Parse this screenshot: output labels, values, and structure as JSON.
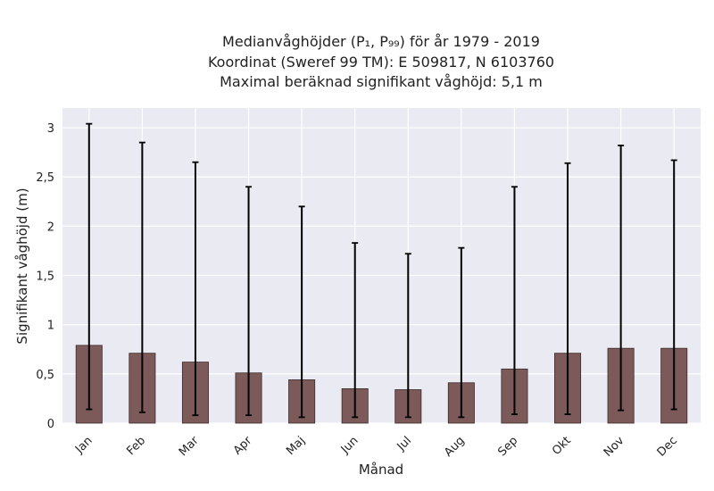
{
  "chart_data": {
    "type": "bar",
    "title_lines": [
      "Medianvåghöjder (P₁, P₉₉) för år 1979 - 2019",
      "Koordinat (Sweref 99 TM): E 509817, N 6103760",
      "Maximal beräknad signifikant våghöjd: 5,1 m"
    ],
    "xlabel": "Månad",
    "ylabel": "Signifikant våghöjd (m)",
    "categories": [
      "Jan",
      "Feb",
      "Mar",
      "Apr",
      "Maj",
      "Jun",
      "Jul",
      "Aug",
      "Sep",
      "Okt",
      "Nov",
      "Dec"
    ],
    "values": [
      0.79,
      0.71,
      0.62,
      0.51,
      0.44,
      0.35,
      0.34,
      0.41,
      0.55,
      0.71,
      0.76,
      0.76
    ],
    "p1": [
      0.14,
      0.11,
      0.08,
      0.08,
      0.06,
      0.06,
      0.06,
      0.06,
      0.09,
      0.09,
      0.13,
      0.14
    ],
    "p99": [
      3.04,
      2.85,
      2.65,
      2.4,
      2.2,
      1.83,
      1.72,
      1.78,
      2.4,
      2.64,
      2.82,
      2.67
    ],
    "ylim": [
      0,
      3.2
    ],
    "yticks": [
      0,
      0.5,
      1,
      1.5,
      2,
      2.5,
      3
    ],
    "ytick_labels": [
      "0",
      "0,5",
      "1",
      "1,5",
      "2",
      "2,5",
      "3"
    ],
    "grid": true,
    "colors": {
      "bar": "#7d5a5a",
      "bar_edge": "#3a2a2a",
      "error_bar": "#000000",
      "plot_bg": "#eaeaf2",
      "grid": "#ffffff"
    }
  }
}
